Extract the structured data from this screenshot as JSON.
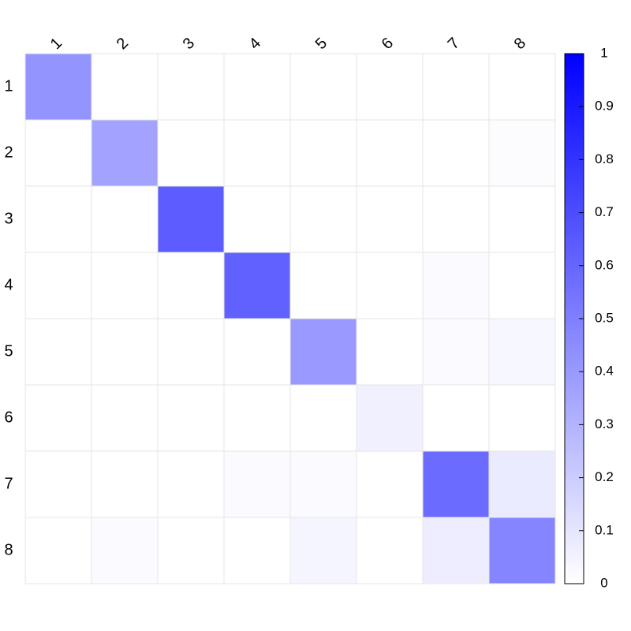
{
  "chart_data": {
    "type": "heatmap",
    "title": "",
    "xlabel": "",
    "ylabel": "",
    "x_categories": [
      "1",
      "2",
      "3",
      "4",
      "5",
      "6",
      "7",
      "8"
    ],
    "y_categories": [
      "1",
      "2",
      "3",
      "4",
      "5",
      "6",
      "7",
      "8"
    ],
    "values": [
      [
        0.42,
        0.0,
        0.0,
        0.0,
        0.0,
        0.0,
        0.0,
        0.0
      ],
      [
        0.0,
        0.36,
        0.0,
        0.0,
        0.0,
        0.0,
        0.0,
        0.01
      ],
      [
        0.0,
        0.0,
        0.64,
        0.0,
        0.0,
        0.0,
        0.0,
        0.0
      ],
      [
        0.0,
        0.0,
        0.0,
        0.62,
        0.0,
        0.0,
        0.02,
        0.0
      ],
      [
        0.0,
        0.0,
        0.0,
        0.0,
        0.4,
        0.0,
        0.02,
        0.03
      ],
      [
        0.0,
        0.0,
        0.0,
        0.0,
        0.0,
        0.06,
        0.0,
        0.0
      ],
      [
        0.0,
        0.0,
        0.0,
        0.02,
        0.02,
        0.0,
        0.58,
        0.08
      ],
      [
        0.0,
        0.02,
        0.0,
        0.0,
        0.04,
        0.0,
        0.07,
        0.48
      ]
    ],
    "colorscale": {
      "min": 0,
      "max": 1,
      "low_color": "#ffffff",
      "high_color": "#0000ff"
    },
    "colorbar_ticks": [
      "0",
      "0.1",
      "0.2",
      "0.3",
      "0.4",
      "0.5",
      "0.6",
      "0.7",
      "0.8",
      "0.9",
      "1"
    ],
    "x_tick_position": "top",
    "x_tick_rotation": "diagonal",
    "grid": true,
    "grid_color": "#e6e6e6",
    "legend": "colorbar-right"
  }
}
